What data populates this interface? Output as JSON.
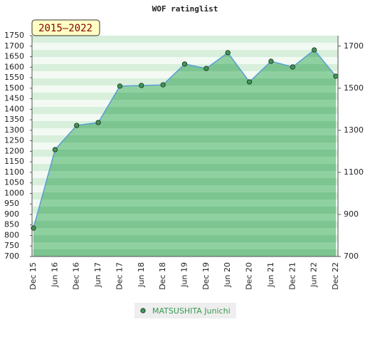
{
  "chart_data": {
    "type": "area",
    "title": "WOF ratinglist",
    "badge": "2015–2022",
    "categories": [
      "Dec 15",
      "Jun 16",
      "Dec 16",
      "Jun 17",
      "Dec 17",
      "Jun 18",
      "Dec 18",
      "Jun 19",
      "Dec 19",
      "Jun 20",
      "Dec 20",
      "Jun 21",
      "Dec 21",
      "Jun 22",
      "Dec 22"
    ],
    "series": [
      {
        "name": "MATSUSHITA Junichi",
        "color": "#5a9fd4",
        "marker_color": "#3a9a50",
        "values": [
          835,
          1208,
          1323,
          1337,
          1510,
          1513,
          1516,
          1615,
          1594,
          1669,
          1530,
          1628,
          1601,
          1682,
          1557
        ]
      }
    ],
    "ylim": [
      700,
      1750
    ],
    "yticks": [
      700,
      750,
      800,
      850,
      900,
      950,
      1000,
      1050,
      1100,
      1150,
      1200,
      1250,
      1300,
      1350,
      1400,
      1450,
      1500,
      1550,
      1600,
      1650,
      1700,
      1750
    ],
    "y2lim": [
      700,
      1750
    ],
    "y2ticks": [
      700,
      900,
      1100,
      1300,
      1500,
      1700
    ],
    "legend": "bottom"
  }
}
